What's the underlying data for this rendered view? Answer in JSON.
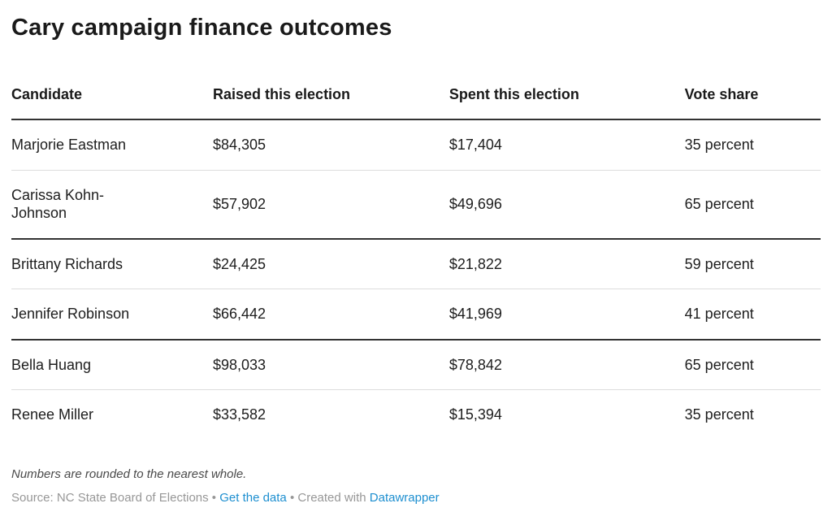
{
  "title": "Cary campaign finance outcomes",
  "table": {
    "columns": [
      "Candidate",
      "Raised this election",
      "Spent this election",
      "Vote share"
    ],
    "rows": [
      {
        "candidate": "Marjorie Eastman",
        "raised": "$84,305",
        "spent": "$17,404",
        "vote_share": "35 percent",
        "group": 1
      },
      {
        "candidate": "Carissa Kohn-\nJohnson",
        "raised": "$57,902",
        "spent": "$49,696",
        "vote_share": "65 percent",
        "group": 1
      },
      {
        "candidate": "Brittany Richards",
        "raised": "$24,425",
        "spent": "$21,822",
        "vote_share": "59 percent",
        "group": 2
      },
      {
        "candidate": "Jennifer Robinson",
        "raised": "$66,442",
        "spent": "$41,969",
        "vote_share": "41 percent",
        "group": 2
      },
      {
        "candidate": "Bella Huang",
        "raised": "$98,033",
        "spent": "$78,842",
        "vote_share": "65 percent",
        "group": 3
      },
      {
        "candidate": "Renee Miller",
        "raised": "$33,582",
        "spent": "$15,394",
        "vote_share": "35 percent",
        "group": 3
      }
    ]
  },
  "footnote": "Numbers are rounded to the nearest whole.",
  "source": {
    "label": "Source: NC State Board of Elections",
    "separator": "•",
    "get_data_label": "Get the data",
    "created_with_label": "Created with",
    "attribution_label": "Datawrapper"
  },
  "colors": {
    "link": "#1e8fd0",
    "text": "#1d1d1d",
    "strong_divider": "#333333",
    "light_divider": "#dddddd",
    "footnote_text": "#4a4a4a",
    "source_text": "#979797",
    "background": "#ffffff"
  },
  "chart_data": {
    "type": "table",
    "title": "Cary campaign finance outcomes",
    "columns": [
      "Candidate",
      "Raised this election",
      "Spent this election",
      "Vote share"
    ],
    "rows": [
      [
        "Marjorie Eastman",
        84305,
        17404,
        35
      ],
      [
        "Carissa Kohn-Johnson",
        57902,
        49696,
        65
      ],
      [
        "Brittany Richards",
        24425,
        21822,
        59
      ],
      [
        "Jennifer Robinson",
        66442,
        41969,
        41
      ],
      [
        "Bella Huang",
        98033,
        78842,
        65
      ],
      [
        "Renee Miller",
        33582,
        15394,
        35
      ]
    ],
    "row_groups": [
      [
        0,
        1
      ],
      [
        2,
        3
      ],
      [
        4,
        5
      ]
    ],
    "units": {
      "raised": "USD",
      "spent": "USD",
      "vote_share": "percent"
    },
    "notes": "Numbers are rounded to the nearest whole.",
    "source": "NC State Board of Elections"
  }
}
